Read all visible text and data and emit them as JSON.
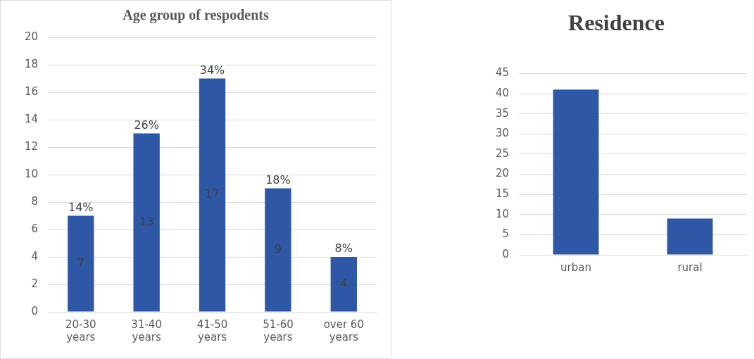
{
  "chart_data": [
    {
      "type": "bar",
      "title": "Age group of respodents",
      "categories": [
        "20-30 years",
        "31-40 years",
        "41-50 years",
        "51-60 years",
        "over 60 years"
      ],
      "values": [
        7,
        13,
        17,
        9,
        4
      ],
      "color": "#2e58a6",
      "ylim": [
        0,
        20
      ],
      "yticks": [
        0,
        2,
        4,
        6,
        8,
        10,
        12,
        14,
        16,
        18,
        20
      ],
      "grid": "y",
      "data_labels": true,
      "annotations": [
        {
          "text": "14%",
          "x": "20-30 years",
          "y": 7
        },
        {
          "text": "26%",
          "x": "31-40 years",
          "y": 13
        },
        {
          "text": "34%",
          "x": "41-50 years",
          "y": 17
        },
        {
          "text": "18%",
          "x": "51-60 years",
          "y": 9
        },
        {
          "text": "8%",
          "x": "over 60 years",
          "y": 4
        }
      ]
    },
    {
      "type": "bar",
      "title": "Residence",
      "categories": [
        "urban",
        "rural"
      ],
      "values": [
        41,
        9
      ],
      "color": "#2e58a6",
      "ylim": [
        0,
        45
      ],
      "yticks": [
        0,
        5,
        10,
        15,
        20,
        25,
        30,
        35,
        40,
        45
      ],
      "grid": "y"
    }
  ]
}
